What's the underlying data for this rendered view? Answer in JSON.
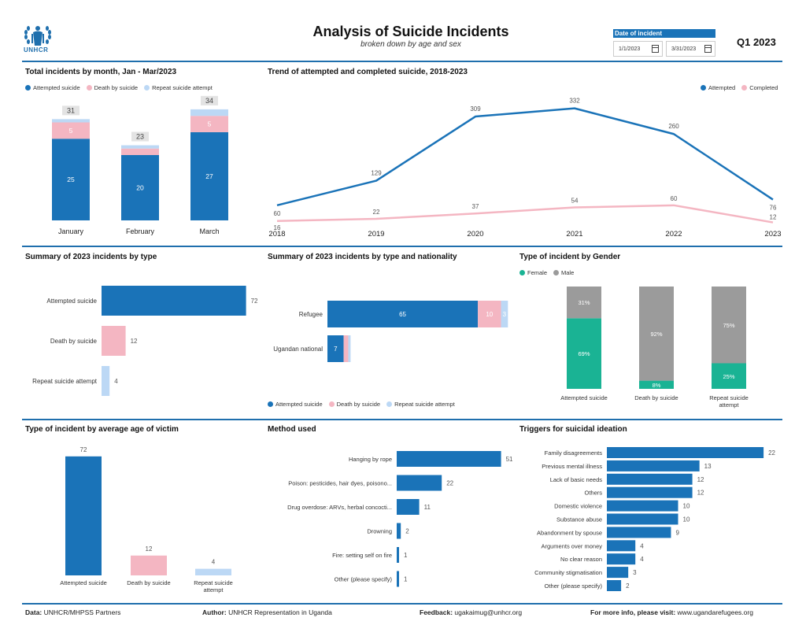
{
  "header": {
    "logo_text": "UNHCR",
    "title": "Analysis of Suicide Incidents",
    "subtitle": "broken down by age and sex",
    "date_label": "Date of incident",
    "date_from": "1/1/2023",
    "date_to": "3/31/2023",
    "period": "Q1 2023"
  },
  "colors": {
    "attempted": "#1a73b8",
    "death": "#f4b6c2",
    "repeat": "#bcd8f5",
    "female": "#1ab394",
    "male": "#9b9b9b",
    "accent_line": "#1f6fad"
  },
  "legends": {
    "types": [
      "Attempted suicide",
      "Death by suicide",
      "Repeat suicide attempt"
    ],
    "trend": [
      "Attempted",
      "Completed"
    ],
    "gender": [
      "Female",
      "Male"
    ]
  },
  "footer": {
    "data_label": "Data:",
    "data_value": "UNHCR/MHPSS Partners",
    "author_label": "Author:",
    "author_value": "UNHCR Representation in Uganda",
    "feedback_label": "Feedback:",
    "feedback_value": "ugakaimug@unhcr.org",
    "info_label": "For more info, please visit:",
    "info_value": "www.ugandarefugees.org"
  },
  "chart_data": [
    {
      "id": "monthly",
      "type": "bar",
      "title": "Total incidents by month, Jan - Mar/2023",
      "categories": [
        "January",
        "February",
        "March"
      ],
      "series": [
        {
          "name": "Attempted suicide",
          "values": [
            25,
            20,
            27
          ]
        },
        {
          "name": "Death by suicide",
          "values": [
            5,
            2,
            5
          ]
        },
        {
          "name": "Repeat suicide attempt",
          "values": [
            1,
            1,
            2
          ]
        }
      ],
      "totals": [
        31,
        23,
        34
      ],
      "segment_labels": [
        [
          "25",
          "5",
          ""
        ],
        [
          "20",
          "",
          ""
        ],
        [
          "27",
          "5",
          ""
        ]
      ]
    },
    {
      "id": "trend",
      "type": "line",
      "title": "Trend of attempted and completed suicide, 2018-2023",
      "x": [
        "2018",
        "2019",
        "2020",
        "2021",
        "2022",
        "2023"
      ],
      "series": [
        {
          "name": "Attempted",
          "values": [
            60,
            129,
            309,
            332,
            260,
            76
          ]
        },
        {
          "name": "Completed",
          "values": [
            16,
            22,
            37,
            54,
            60,
            12
          ]
        }
      ]
    },
    {
      "id": "by_type",
      "type": "bar",
      "title": "Summary of 2023 incidents by type",
      "categories": [
        "Attempted suicide",
        "Death by suicide",
        "Repeat suicide attempt"
      ],
      "values": [
        72,
        12,
        4
      ]
    },
    {
      "id": "by_nationality",
      "type": "bar",
      "title": "Summary of 2023 incidents by type and nationality",
      "categories": [
        "Refugee",
        "Ugandan national"
      ],
      "series": [
        {
          "name": "Attempted suicide",
          "values": [
            65,
            7
          ]
        },
        {
          "name": "Death by suicide",
          "values": [
            10,
            2
          ]
        },
        {
          "name": "Repeat suicide attempt",
          "values": [
            3,
            1
          ]
        }
      ],
      "segment_labels": [
        [
          "65",
          "10",
          "3"
        ],
        [
          "7",
          "",
          ""
        ]
      ]
    },
    {
      "id": "by_gender",
      "type": "bar",
      "title": "Type of incident by Gender",
      "categories": [
        "Attempted suicide",
        "Death by suicide",
        "Repeat suicide attempt"
      ],
      "series": [
        {
          "name": "Female",
          "values": [
            69,
            8,
            25
          ]
        },
        {
          "name": "Male",
          "values": [
            31,
            92,
            75
          ]
        }
      ],
      "unit": "%"
    },
    {
      "id": "by_age",
      "type": "bar",
      "title": "Type of incident by average age of victim",
      "categories": [
        "Attempted suicide",
        "Death by suicide",
        "Repeat suicide attempt"
      ],
      "values": [
        72,
        12,
        4
      ]
    },
    {
      "id": "method",
      "type": "bar",
      "title": "Method used",
      "categories": [
        "Hanging by rope",
        "Poison: pesticides, hair dyes, poisono...",
        "Drug overdose: ARVs, herbal concocti...",
        "Drowning",
        "Fire: setting self on fire",
        "Other (please specify)"
      ],
      "values": [
        51,
        22,
        11,
        2,
        1,
        1
      ]
    },
    {
      "id": "triggers",
      "type": "bar",
      "title": "Triggers for suicidal ideation",
      "categories": [
        "Family disagreements",
        "Previous mental illness",
        "Lack of basic needs",
        "Others",
        "Domestic violence",
        "Substance abuse",
        "Abandonment by spouse",
        "Arguments over money",
        "No clear reason",
        "Community stigmatisation",
        "Other (please specify)"
      ],
      "values": [
        22,
        13,
        12,
        12,
        10,
        10,
        9,
        4,
        4,
        3,
        2
      ]
    }
  ]
}
